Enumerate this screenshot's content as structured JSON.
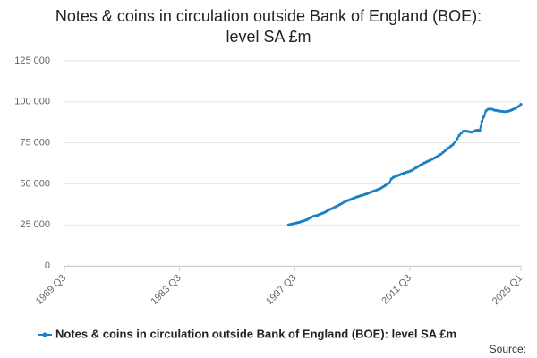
{
  "chart_data": {
    "type": "line",
    "title_lines": [
      "Notes & coins in circulation outside Bank of England (BOE):",
      "level SA £m"
    ],
    "source": "Source:",
    "categories": [
      "1969 Q3",
      null,
      null,
      null,
      null,
      null,
      null,
      null,
      null,
      null,
      null,
      null,
      null,
      null,
      null,
      null,
      null,
      null,
      null,
      null,
      null,
      null,
      null,
      null,
      null,
      null,
      null,
      null,
      null,
      null,
      null,
      null,
      null,
      null,
      null,
      null,
      null,
      null,
      null,
      null,
      null,
      null,
      null,
      null,
      null,
      null,
      null,
      null,
      null,
      null,
      null,
      null,
      null,
      null,
      null,
      null,
      "1983 Q3",
      null,
      null,
      null,
      null,
      null,
      null,
      null,
      null,
      null,
      null,
      null,
      null,
      null,
      null,
      null,
      null,
      null,
      null,
      null,
      null,
      null,
      null,
      null,
      null,
      null,
      null,
      null,
      null,
      null,
      null,
      null,
      null,
      null,
      null,
      null,
      null,
      null,
      null,
      null,
      null,
      null,
      null,
      null,
      null,
      null,
      null,
      null,
      null,
      null,
      null,
      null,
      null,
      null,
      null,
      null,
      "1997 Q3",
      null,
      null,
      null,
      null,
      null,
      null,
      null,
      null,
      null,
      null,
      null,
      null,
      null,
      null,
      null,
      null,
      null,
      null,
      null,
      null,
      null,
      null,
      null,
      null,
      null,
      null,
      null,
      null,
      null,
      null,
      null,
      null,
      null,
      null,
      null,
      null,
      null,
      null,
      null,
      null,
      null,
      null,
      null,
      null,
      null,
      null,
      null,
      null,
      null,
      null,
      null,
      null,
      null,
      null,
      null,
      "2011 Q3",
      null,
      null,
      null,
      null,
      null,
      null,
      null,
      null,
      null,
      null,
      null,
      null,
      null,
      null,
      null,
      null,
      null,
      null,
      null,
      null,
      null,
      null,
      null,
      null,
      null,
      null,
      null,
      null,
      null,
      null,
      null,
      null,
      null,
      null,
      null,
      null,
      null,
      null,
      null,
      null,
      null,
      null,
      null,
      null,
      null,
      null,
      null,
      null,
      null,
      null,
      null,
      null,
      null,
      "2025 Q1"
    ],
    "series": [
      {
        "name": "Notes & coins in circulation outside Bank of England (BOE): level SA £m",
        "color": "#1a7fc3",
        "values": [
          null,
          null,
          null,
          null,
          null,
          null,
          null,
          null,
          null,
          null,
          null,
          null,
          null,
          null,
          null,
          null,
          null,
          null,
          null,
          null,
          null,
          null,
          null,
          null,
          null,
          null,
          null,
          null,
          null,
          null,
          null,
          null,
          null,
          null,
          null,
          null,
          null,
          null,
          null,
          null,
          null,
          null,
          null,
          null,
          null,
          null,
          null,
          null,
          null,
          null,
          null,
          null,
          null,
          null,
          null,
          null,
          null,
          null,
          null,
          null,
          null,
          null,
          null,
          null,
          null,
          null,
          null,
          null,
          null,
          null,
          null,
          null,
          null,
          null,
          null,
          null,
          null,
          null,
          null,
          null,
          null,
          null,
          null,
          null,
          null,
          null,
          null,
          null,
          null,
          null,
          null,
          null,
          null,
          null,
          null,
          null,
          null,
          null,
          null,
          null,
          null,
          null,
          null,
          null,
          null,
          null,
          null,
          null,
          null,
          25000,
          25300,
          25600,
          25900,
          26200,
          26500,
          26900,
          27300,
          27700,
          28200,
          28900,
          29600,
          30200,
          30500,
          30800,
          31300,
          31800,
          32300,
          32900,
          33600,
          34300,
          34900,
          35500,
          36100,
          36700,
          37400,
          38100,
          38800,
          39400,
          39900,
          40400,
          40900,
          41400,
          41900,
          42300,
          42700,
          43100,
          43500,
          43900,
          44400,
          44900,
          45400,
          45800,
          46300,
          46800,
          47400,
          48200,
          49000,
          49800,
          50600,
          53000,
          54000,
          54500,
          55000,
          55500,
          56000,
          56500,
          57000,
          57300,
          57700,
          58300,
          59000,
          59800,
          60600,
          61300,
          62000,
          62700,
          63300,
          63900,
          64500,
          65100,
          65800,
          66500,
          67200,
          68000,
          69000,
          70000,
          71000,
          72000,
          73000,
          74000,
          75500,
          77500,
          79500,
          81000,
          82000,
          82300,
          82000,
          81700,
          81500,
          82000,
          82500,
          82700,
          82600,
          88000,
          91000,
          94500,
          95500,
          95700,
          95500,
          95000,
          94800,
          94500,
          94300,
          94200,
          94000,
          94100,
          94300,
          94800,
          95300,
          96000,
          96600,
          97300,
          98500
        ]
      }
    ],
    "ylim": [
      0,
      125000
    ],
    "yticks": [
      0,
      {
        "value": 25000,
        "label": "25 000"
      },
      {
        "value": 50000,
        "label": "50 000"
      },
      {
        "value": 75000,
        "label": "75 000"
      },
      {
        "value": 100000,
        "label": "100 000"
      },
      {
        "value": 125000,
        "label": "125 000"
      }
    ],
    "grid": true
  }
}
